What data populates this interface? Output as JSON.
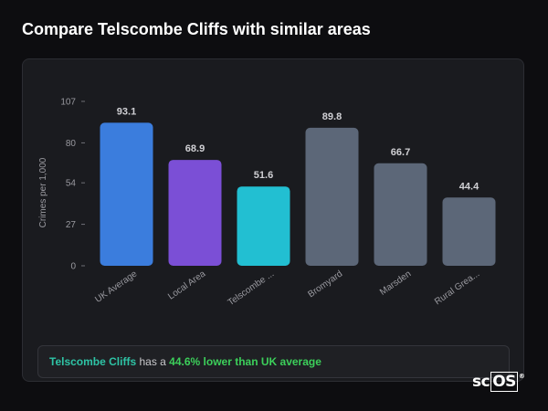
{
  "page": {
    "title": "Compare Telscombe Cliffs with similar areas"
  },
  "chart_data": {
    "type": "bar",
    "ylabel": "Crimes per 1,000",
    "yticks": [
      0,
      27,
      54,
      80,
      107
    ],
    "ylim": [
      0,
      107
    ],
    "categories": [
      "UK Average",
      "Local Area",
      "Telscombe ...",
      "Bromyard",
      "Marsden",
      "Rural Grea..."
    ],
    "values": [
      93.1,
      68.9,
      51.6,
      89.8,
      66.7,
      44.4
    ],
    "value_labels": [
      "93.1",
      "68.9",
      "51.6",
      "89.8",
      "66.7",
      "44.4"
    ],
    "colors": [
      "#3b7ddd",
      "#7b4fd6",
      "#22bfd2",
      "#5c6778",
      "#5c6778",
      "#5c6778"
    ],
    "grid": false,
    "legend": "none"
  },
  "summary": {
    "area_name": "Telscombe Cliffs",
    "connector": " has a ",
    "difference": "44.6% lower than UK average"
  },
  "branding": {
    "logo_prefix": "sc",
    "logo_box": "OS",
    "logo_mark": "®"
  }
}
